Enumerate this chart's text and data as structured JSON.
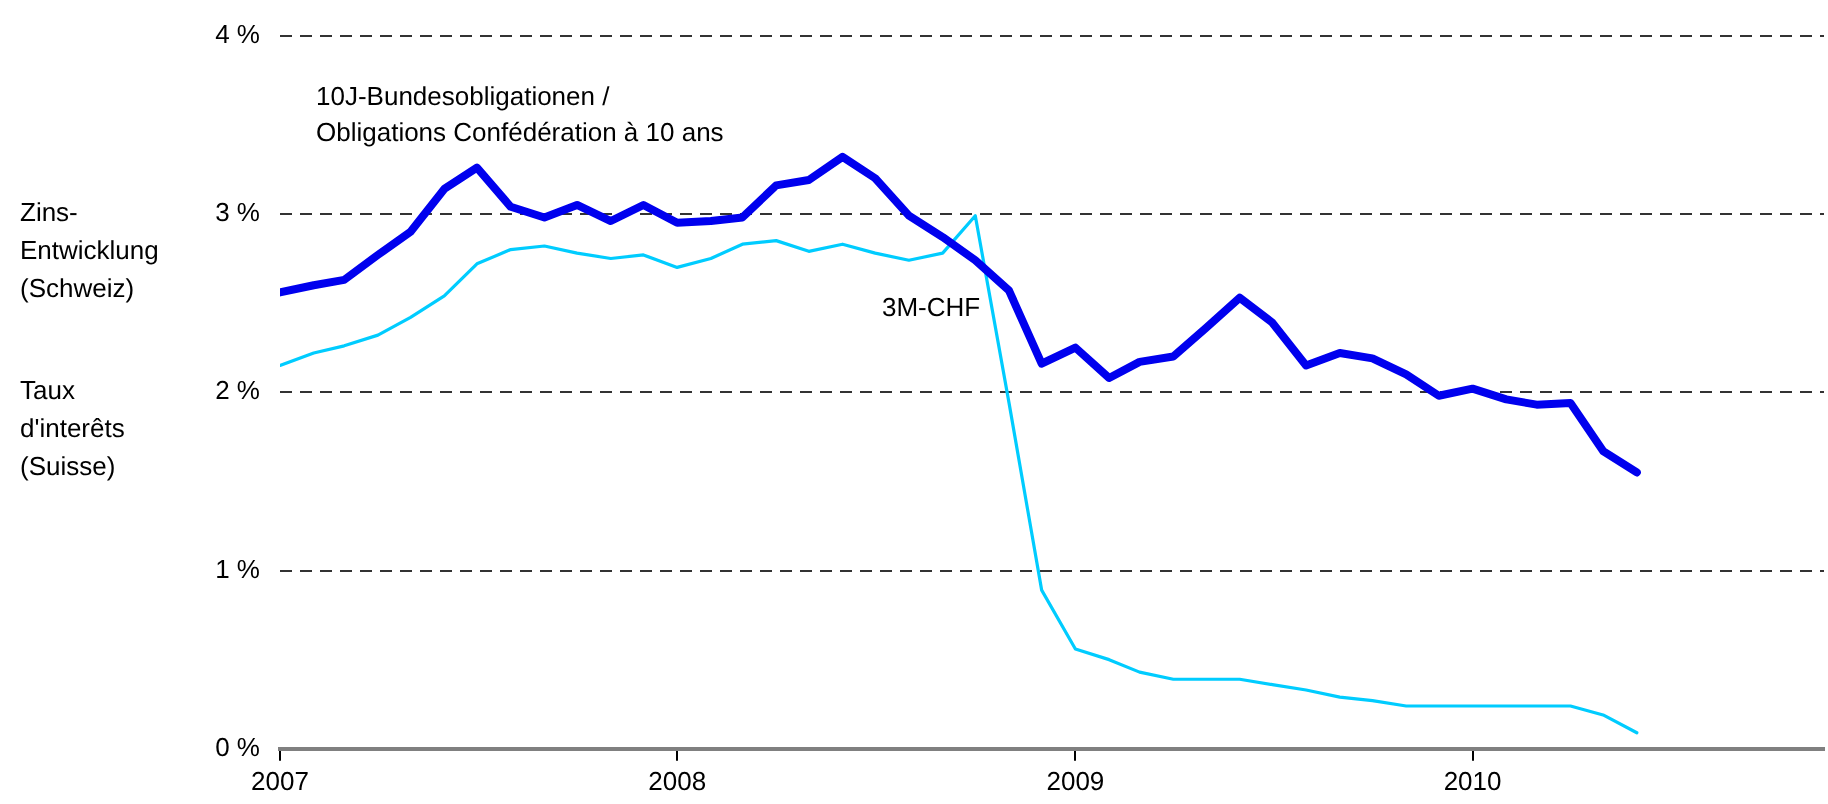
{
  "chart_data": {
    "type": "line",
    "ylabel": "Zins-\nEntwicklung\n(Schweiz)\n\nTaux\nd'interêts\n(Suisse)",
    "x": [
      "2007-01",
      "2007-02",
      "2007-03",
      "2007-04",
      "2007-05",
      "2007-06",
      "2007-07",
      "2007-08",
      "2007-09",
      "2007-10",
      "2007-11",
      "2007-12",
      "2008-01",
      "2008-02",
      "2008-03",
      "2008-04",
      "2008-05",
      "2008-06",
      "2008-07",
      "2008-08",
      "2008-09",
      "2008-10",
      "2008-11",
      "2008-12",
      "2009-01",
      "2009-02",
      "2009-03",
      "2009-04",
      "2009-05",
      "2009-06",
      "2009-07",
      "2009-08",
      "2009-09",
      "2009-10",
      "2009-11",
      "2009-12",
      "2010-01",
      "2010-02",
      "2010-03",
      "2010-04",
      "2010-05",
      "2010-06"
    ],
    "series": [
      {
        "name": "10J-Bundesobligationen /\nObligations Confédération à 10 ans",
        "color": "#0000ee",
        "values": [
          2.56,
          2.6,
          2.63,
          2.77,
          2.9,
          3.14,
          3.26,
          3.04,
          2.98,
          3.05,
          2.96,
          3.05,
          2.95,
          2.96,
          2.98,
          3.16,
          3.19,
          3.32,
          3.2,
          2.99,
          2.87,
          2.74,
          2.57,
          2.16,
          2.25,
          2.08,
          2.17,
          2.2,
          2.36,
          2.53,
          2.39,
          2.15,
          2.22,
          2.19,
          2.1,
          1.98,
          2.02,
          1.96,
          1.93,
          1.94,
          1.67,
          1.55
        ]
      },
      {
        "name": "3M-CHF",
        "color": "#00ccff",
        "values": [
          2.15,
          2.22,
          2.26,
          2.32,
          2.42,
          2.54,
          2.72,
          2.8,
          2.82,
          2.78,
          2.75,
          2.77,
          2.7,
          2.75,
          2.83,
          2.85,
          2.79,
          2.83,
          2.78,
          2.74,
          2.78,
          2.99,
          1.94,
          0.89,
          0.56,
          0.5,
          0.43,
          0.39,
          0.39,
          0.39,
          0.36,
          0.33,
          0.29,
          0.27,
          0.24,
          0.24,
          0.24,
          0.24,
          0.24,
          0.24,
          0.19,
          0.09
        ]
      }
    ],
    "xlim": [
      "2007-01",
      "2010-11-20"
    ],
    "xticks": [
      {
        "value": "2007",
        "label": "2007"
      },
      {
        "value": "2008",
        "label": "2008"
      },
      {
        "value": "2009",
        "label": "2009"
      },
      {
        "value": "2010",
        "label": "2010"
      }
    ],
    "ylim": [
      0,
      4
    ],
    "yticks": [
      {
        "value": 0,
        "label": "0 %"
      },
      {
        "value": 1,
        "label": "1 %"
      },
      {
        "value": 2,
        "label": "2 %"
      },
      {
        "value": 3,
        "label": "3 %"
      },
      {
        "value": 4,
        "label": "4 %"
      }
    ],
    "grid": "y",
    "legend": false,
    "marker": "none",
    "line_style": "solid"
  }
}
